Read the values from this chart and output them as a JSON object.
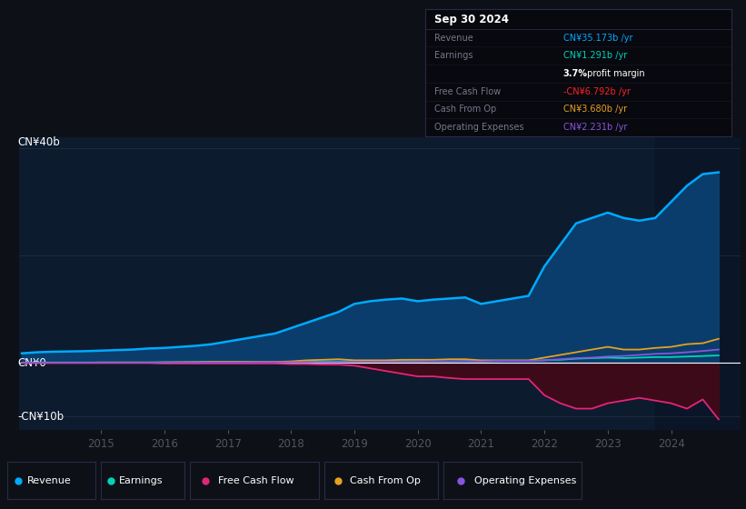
{
  "bg_color": "#0d1117",
  "chart_bg": "#0d1b2e",
  "grid_color": "#2a3a50",
  "zero_line_color": "#ffffff",
  "title_text": "Sep 30 2024",
  "y_label_top": "CN¥40b",
  "y_label_mid": "CN¥0",
  "y_label_bot": "-CN¥10b",
  "x_ticks": [
    2015,
    2016,
    2017,
    2018,
    2019,
    2020,
    2021,
    2022,
    2023,
    2024
  ],
  "ylim": [
    -12.5,
    42.0
  ],
  "xlim_start": 2013.7,
  "xlim_end": 2025.1,
  "highlight_start": 2023.75,
  "years": [
    2013.75,
    2014.0,
    2014.25,
    2014.5,
    2014.75,
    2015.0,
    2015.25,
    2015.5,
    2015.75,
    2016.0,
    2016.25,
    2016.5,
    2016.75,
    2017.0,
    2017.25,
    2017.5,
    2017.75,
    2018.0,
    2018.25,
    2018.5,
    2018.75,
    2019.0,
    2019.25,
    2019.5,
    2019.75,
    2020.0,
    2020.25,
    2020.5,
    2020.75,
    2021.0,
    2021.25,
    2021.5,
    2021.75,
    2022.0,
    2022.25,
    2022.5,
    2022.75,
    2023.0,
    2023.25,
    2023.5,
    2023.75,
    2024.0,
    2024.25,
    2024.5,
    2024.75
  ],
  "revenue": [
    1.8,
    2.0,
    2.1,
    2.15,
    2.2,
    2.3,
    2.4,
    2.5,
    2.7,
    2.8,
    3.0,
    3.2,
    3.5,
    4.0,
    4.5,
    5.0,
    5.5,
    6.5,
    7.5,
    8.5,
    9.5,
    11.0,
    11.5,
    11.8,
    12.0,
    11.5,
    11.8,
    12.0,
    12.2,
    11.0,
    11.5,
    12.0,
    12.5,
    18.0,
    22.0,
    26.0,
    27.0,
    28.0,
    27.0,
    26.5,
    27.0,
    30.0,
    33.0,
    35.173,
    35.5
  ],
  "earnings": [
    0.05,
    0.1,
    0.1,
    0.1,
    0.1,
    0.1,
    0.1,
    0.1,
    0.1,
    0.15,
    0.15,
    0.2,
    0.2,
    0.2,
    0.2,
    0.2,
    0.2,
    0.2,
    0.2,
    0.3,
    0.3,
    0.3,
    0.3,
    0.3,
    0.35,
    0.3,
    0.3,
    0.3,
    0.35,
    0.3,
    0.35,
    0.4,
    0.4,
    0.5,
    0.6,
    0.8,
    0.9,
    1.0,
    0.9,
    1.0,
    1.1,
    1.1,
    1.2,
    1.291,
    1.4
  ],
  "free_cash_flow": [
    0.0,
    0.0,
    0.0,
    0.0,
    0.0,
    0.0,
    0.0,
    0.0,
    0.0,
    -0.1,
    -0.1,
    -0.1,
    -0.1,
    -0.1,
    -0.1,
    -0.1,
    -0.1,
    -0.2,
    -0.2,
    -0.3,
    -0.3,
    -0.5,
    -1.0,
    -1.5,
    -2.0,
    -2.5,
    -2.5,
    -2.8,
    -3.0,
    -3.0,
    -3.0,
    -3.0,
    -3.0,
    -6.0,
    -7.5,
    -8.5,
    -8.5,
    -7.5,
    -7.0,
    -6.5,
    -7.0,
    -7.5,
    -8.5,
    -6.792,
    -10.5
  ],
  "cash_from_op": [
    0.05,
    0.05,
    0.05,
    0.05,
    0.05,
    0.1,
    0.1,
    0.1,
    0.1,
    0.1,
    0.15,
    0.15,
    0.2,
    0.2,
    0.2,
    0.2,
    0.2,
    0.3,
    0.5,
    0.6,
    0.7,
    0.5,
    0.5,
    0.5,
    0.6,
    0.6,
    0.6,
    0.7,
    0.7,
    0.5,
    0.5,
    0.5,
    0.5,
    1.0,
    1.5,
    2.0,
    2.5,
    3.0,
    2.5,
    2.5,
    2.8,
    3.0,
    3.5,
    3.68,
    4.5
  ],
  "operating_expenses": [
    0.05,
    0.05,
    0.05,
    0.05,
    0.05,
    0.05,
    0.05,
    0.05,
    0.05,
    0.1,
    0.1,
    0.1,
    0.1,
    0.1,
    0.1,
    0.15,
    0.15,
    0.15,
    0.15,
    0.15,
    0.15,
    0.2,
    0.2,
    0.2,
    0.2,
    0.2,
    0.3,
    0.3,
    0.3,
    0.3,
    0.4,
    0.4,
    0.4,
    0.5,
    0.7,
    0.9,
    1.0,
    1.2,
    1.3,
    1.5,
    1.7,
    1.8,
    2.0,
    2.231,
    2.5
  ],
  "revenue_color": "#00aaff",
  "revenue_fill": "#0a3d6b",
  "earnings_color": "#00d4b8",
  "fcf_color": "#e0267a",
  "fcf_fill": "#3d0a1a",
  "cashop_color": "#e8a020",
  "opex_color": "#8855dd",
  "table_rows": [
    {
      "label": "Revenue",
      "value": "CN¥35.173b /yr",
      "color": "#00aaff"
    },
    {
      "label": "Earnings",
      "value": "CN¥1.291b /yr",
      "color": "#00d4b8"
    },
    {
      "label": "",
      "value": "3.7% profit margin",
      "color": "#ffffff"
    },
    {
      "label": "Free Cash Flow",
      "value": "-CN¥6.792b /yr",
      "color": "#ff2222"
    },
    {
      "label": "Cash From Op",
      "value": "CN¥3.680b /yr",
      "color": "#e8a020"
    },
    {
      "label": "Operating Expenses",
      "value": "CN¥2.231b /yr",
      "color": "#8855dd"
    }
  ],
  "legend_items": [
    {
      "label": "Revenue",
      "color": "#00aaff"
    },
    {
      "label": "Earnings",
      "color": "#00d4b8"
    },
    {
      "label": "Free Cash Flow",
      "color": "#e0267a"
    },
    {
      "label": "Cash From Op",
      "color": "#e8a020"
    },
    {
      "label": "Operating Expenses",
      "color": "#8855dd"
    }
  ]
}
